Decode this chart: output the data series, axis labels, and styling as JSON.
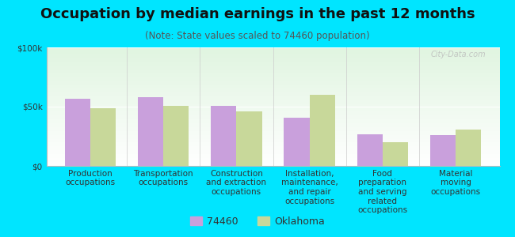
{
  "title": "Occupation by median earnings in the past 12 months",
  "subtitle": "(Note: State values scaled to 74460 population)",
  "categories": [
    "Production\noccupations",
    "Transportation\noccupations",
    "Construction\nand extraction\noccupations",
    "Installation,\nmaintenance,\nand repair\noccupations",
    "Food\npreparation\nand serving\nrelated\noccupations",
    "Material\nmoving\noccupations"
  ],
  "values_74460": [
    57000,
    58000,
    51000,
    41000,
    27000,
    26000
  ],
  "values_oklahoma": [
    49000,
    51000,
    46000,
    60000,
    20000,
    31000
  ],
  "bar_color_74460": "#c9a0dc",
  "bar_color_oklahoma": "#c8d89a",
  "background_color": "#00e5ff",
  "ylim": [
    0,
    100000
  ],
  "ytick_labels": [
    "$0",
    "$50k",
    "$100k"
  ],
  "legend_label_74460": "74460",
  "legend_label_oklahoma": "Oklahoma",
  "watermark": "City-Data.com",
  "title_fontsize": 13,
  "subtitle_fontsize": 8.5,
  "tick_fontsize": 7.5,
  "bar_width": 0.35
}
